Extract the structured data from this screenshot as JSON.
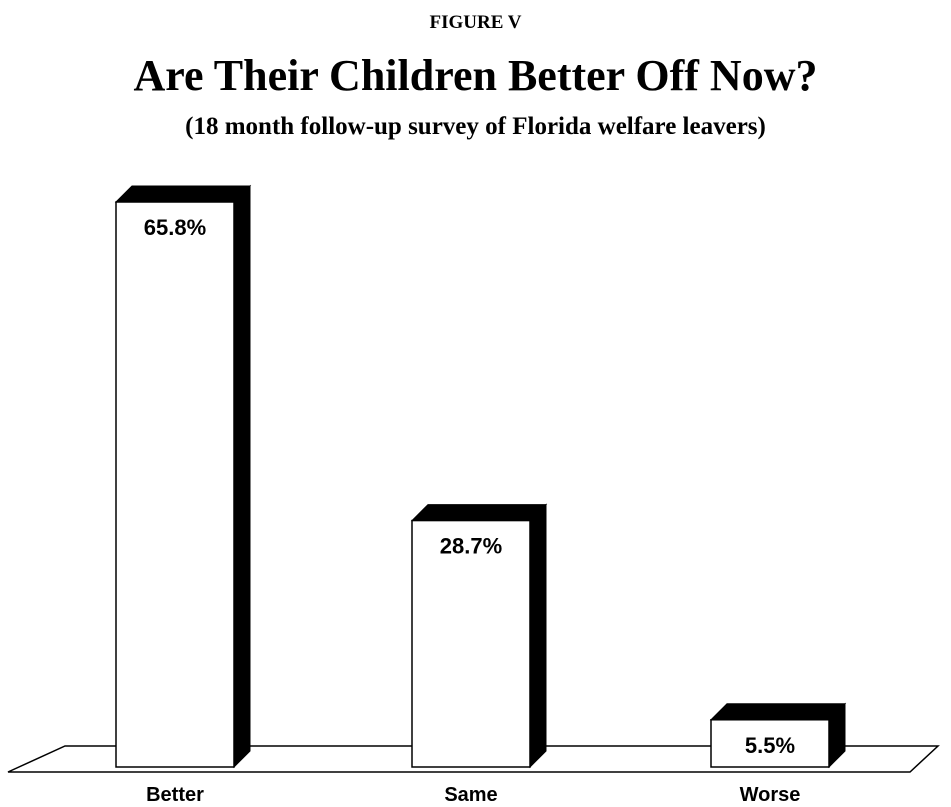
{
  "figure_label": "FIGURE V",
  "title": "Are Their Children Better Off Now?",
  "subtitle": "(18 month follow-up survey of Florida welfare leavers)",
  "chart_data": {
    "type": "bar",
    "categories": [
      "Better",
      "Same",
      "Worse"
    ],
    "values": [
      65.8,
      28.7,
      5.5
    ],
    "value_labels": [
      "65.8%",
      "28.7%",
      "5.5%"
    ],
    "title": "Are Their Children Better Off Now?",
    "subtitle": "(18 month follow-up survey of Florida welfare leavers)",
    "xlabel": "",
    "ylabel": "",
    "ylim": [
      0,
      70
    ],
    "grid": false,
    "legend": "none",
    "style": "3d",
    "colors": {
      "bar_face": "#ffffff",
      "bar_side": "#000000",
      "outline": "#000000"
    }
  }
}
